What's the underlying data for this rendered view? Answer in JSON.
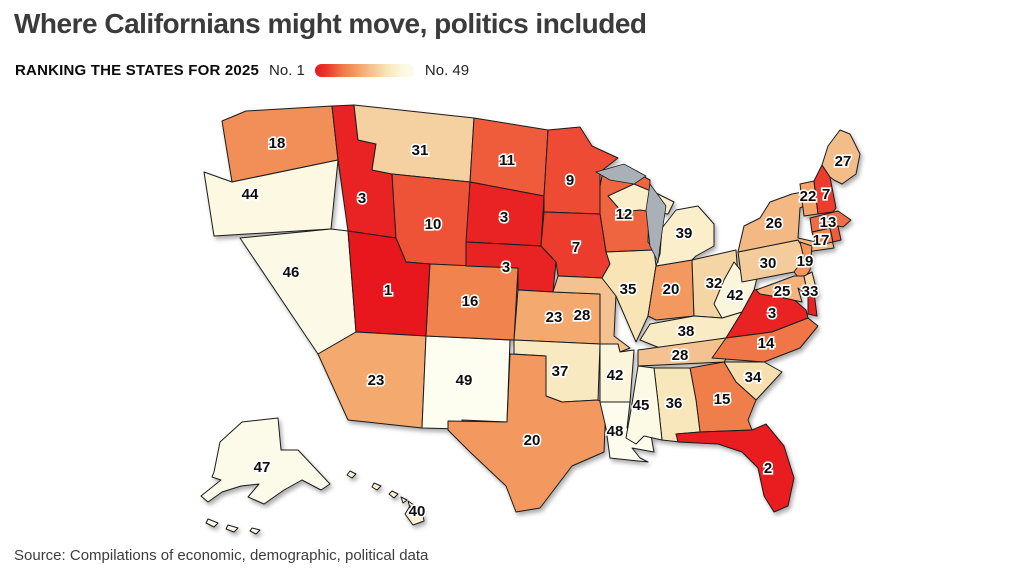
{
  "title": "Where Californians might move, politics included",
  "legend": {
    "kicker": "RANKING THE STATES FOR 2025",
    "min_label": "No. 1",
    "max_label": "No. 49"
  },
  "source": "Source: Compilations of economic, demographic, political data",
  "colors": {
    "background": "#ffffff",
    "state_border": "#1b1b1b",
    "lake": "#a9b0b8",
    "label_text": "#0d0d0d",
    "label_halo": "#ffffff",
    "title_text": "#3b3b3b",
    "scale_stops": [
      "#e8161d",
      "#ed4130",
      "#f07c4a",
      "#f4a266",
      "#f3c493",
      "#f8e5b6",
      "#fbf6dc",
      "#fdfdf0"
    ]
  },
  "chart_data": {
    "type": "choropleth",
    "title": "Where Californians might move, politics included",
    "subtitle": "RANKING THE STATES FOR 2025",
    "scale": {
      "min": 1,
      "max": 49,
      "min_label": "No. 1",
      "max_label": "No. 49"
    },
    "states": [
      {
        "abbr": "WA",
        "name": "Washington",
        "rank": 18
      },
      {
        "abbr": "OR",
        "name": "Oregon",
        "rank": 44
      },
      {
        "abbr": "ID",
        "name": "Idaho",
        "rank": 3
      },
      {
        "abbr": "MT",
        "name": "Montana",
        "rank": 31
      },
      {
        "abbr": "WY",
        "name": "Wyoming",
        "rank": 10
      },
      {
        "abbr": "NV",
        "name": "Nevada",
        "rank": 46
      },
      {
        "abbr": "UT",
        "name": "Utah",
        "rank": 1
      },
      {
        "abbr": "AZ",
        "name": "Arizona",
        "rank": 23
      },
      {
        "abbr": "NM",
        "name": "New Mexico",
        "rank": 49
      },
      {
        "abbr": "CO",
        "name": "Colorado",
        "rank": 16
      },
      {
        "abbr": "ND",
        "name": "North Dakota",
        "rank": 11
      },
      {
        "abbr": "SD",
        "name": "South Dakota",
        "rank": 3
      },
      {
        "abbr": "NE",
        "name": "Nebraska",
        "rank": 3
      },
      {
        "abbr": "KS",
        "name": "Kansas",
        "rank": 23
      },
      {
        "abbr": "OK",
        "name": "Oklahoma",
        "rank": 37
      },
      {
        "abbr": "TX",
        "name": "Texas",
        "rank": 20
      },
      {
        "abbr": "MN",
        "name": "Minnesota",
        "rank": 9
      },
      {
        "abbr": "IA",
        "name": "Iowa",
        "rank": 7
      },
      {
        "abbr": "MO",
        "name": "Missouri",
        "rank": 28
      },
      {
        "abbr": "AR",
        "name": "Arkansas",
        "rank": 42
      },
      {
        "abbr": "LA",
        "name": "Louisiana",
        "rank": 48
      },
      {
        "abbr": "WI",
        "name": "Wisconsin",
        "rank": 12
      },
      {
        "abbr": "IL",
        "name": "Illinois",
        "rank": 35
      },
      {
        "abbr": "IN",
        "name": "Indiana",
        "rank": 20
      },
      {
        "abbr": "OH",
        "name": "Ohio",
        "rank": 32
      },
      {
        "abbr": "MI",
        "name": "Michigan",
        "rank": 39
      },
      {
        "abbr": "KY",
        "name": "Kentucky",
        "rank": 38
      },
      {
        "abbr": "TN",
        "name": "Tennessee",
        "rank": 28
      },
      {
        "abbr": "MS",
        "name": "Mississippi",
        "rank": 45
      },
      {
        "abbr": "AL",
        "name": "Alabama",
        "rank": 36
      },
      {
        "abbr": "GA",
        "name": "Georgia",
        "rank": 15
      },
      {
        "abbr": "FL",
        "name": "Florida",
        "rank": 2
      },
      {
        "abbr": "SC",
        "name": "South Carolina",
        "rank": 34
      },
      {
        "abbr": "NC",
        "name": "North Carolina",
        "rank": 14
      },
      {
        "abbr": "VA",
        "name": "Virginia",
        "rank": 3
      },
      {
        "abbr": "WV",
        "name": "West Virginia",
        "rank": 42
      },
      {
        "abbr": "MD",
        "name": "Maryland",
        "rank": 25
      },
      {
        "abbr": "DE",
        "name": "Delaware",
        "rank": 33
      },
      {
        "abbr": "NJ",
        "name": "New Jersey",
        "rank": 19
      },
      {
        "abbr": "PA",
        "name": "Pennsylvania",
        "rank": 30
      },
      {
        "abbr": "NY",
        "name": "New York",
        "rank": 26
      },
      {
        "abbr": "CT",
        "name": "Connecticut",
        "rank": 17
      },
      {
        "abbr": "RI",
        "name": "Rhode Island",
        "rank": null,
        "color": "#ee5c3e"
      },
      {
        "abbr": "MA",
        "name": "Massachusetts",
        "rank": 13
      },
      {
        "abbr": "VT",
        "name": "Vermont",
        "rank": 22
      },
      {
        "abbr": "NH",
        "name": "New Hampshire",
        "rank": 7
      },
      {
        "abbr": "ME",
        "name": "Maine",
        "rank": 27
      },
      {
        "abbr": "AK",
        "name": "Alaska",
        "rank": 47
      },
      {
        "abbr": "HI",
        "name": "Hawaii",
        "rank": 40
      }
    ]
  }
}
